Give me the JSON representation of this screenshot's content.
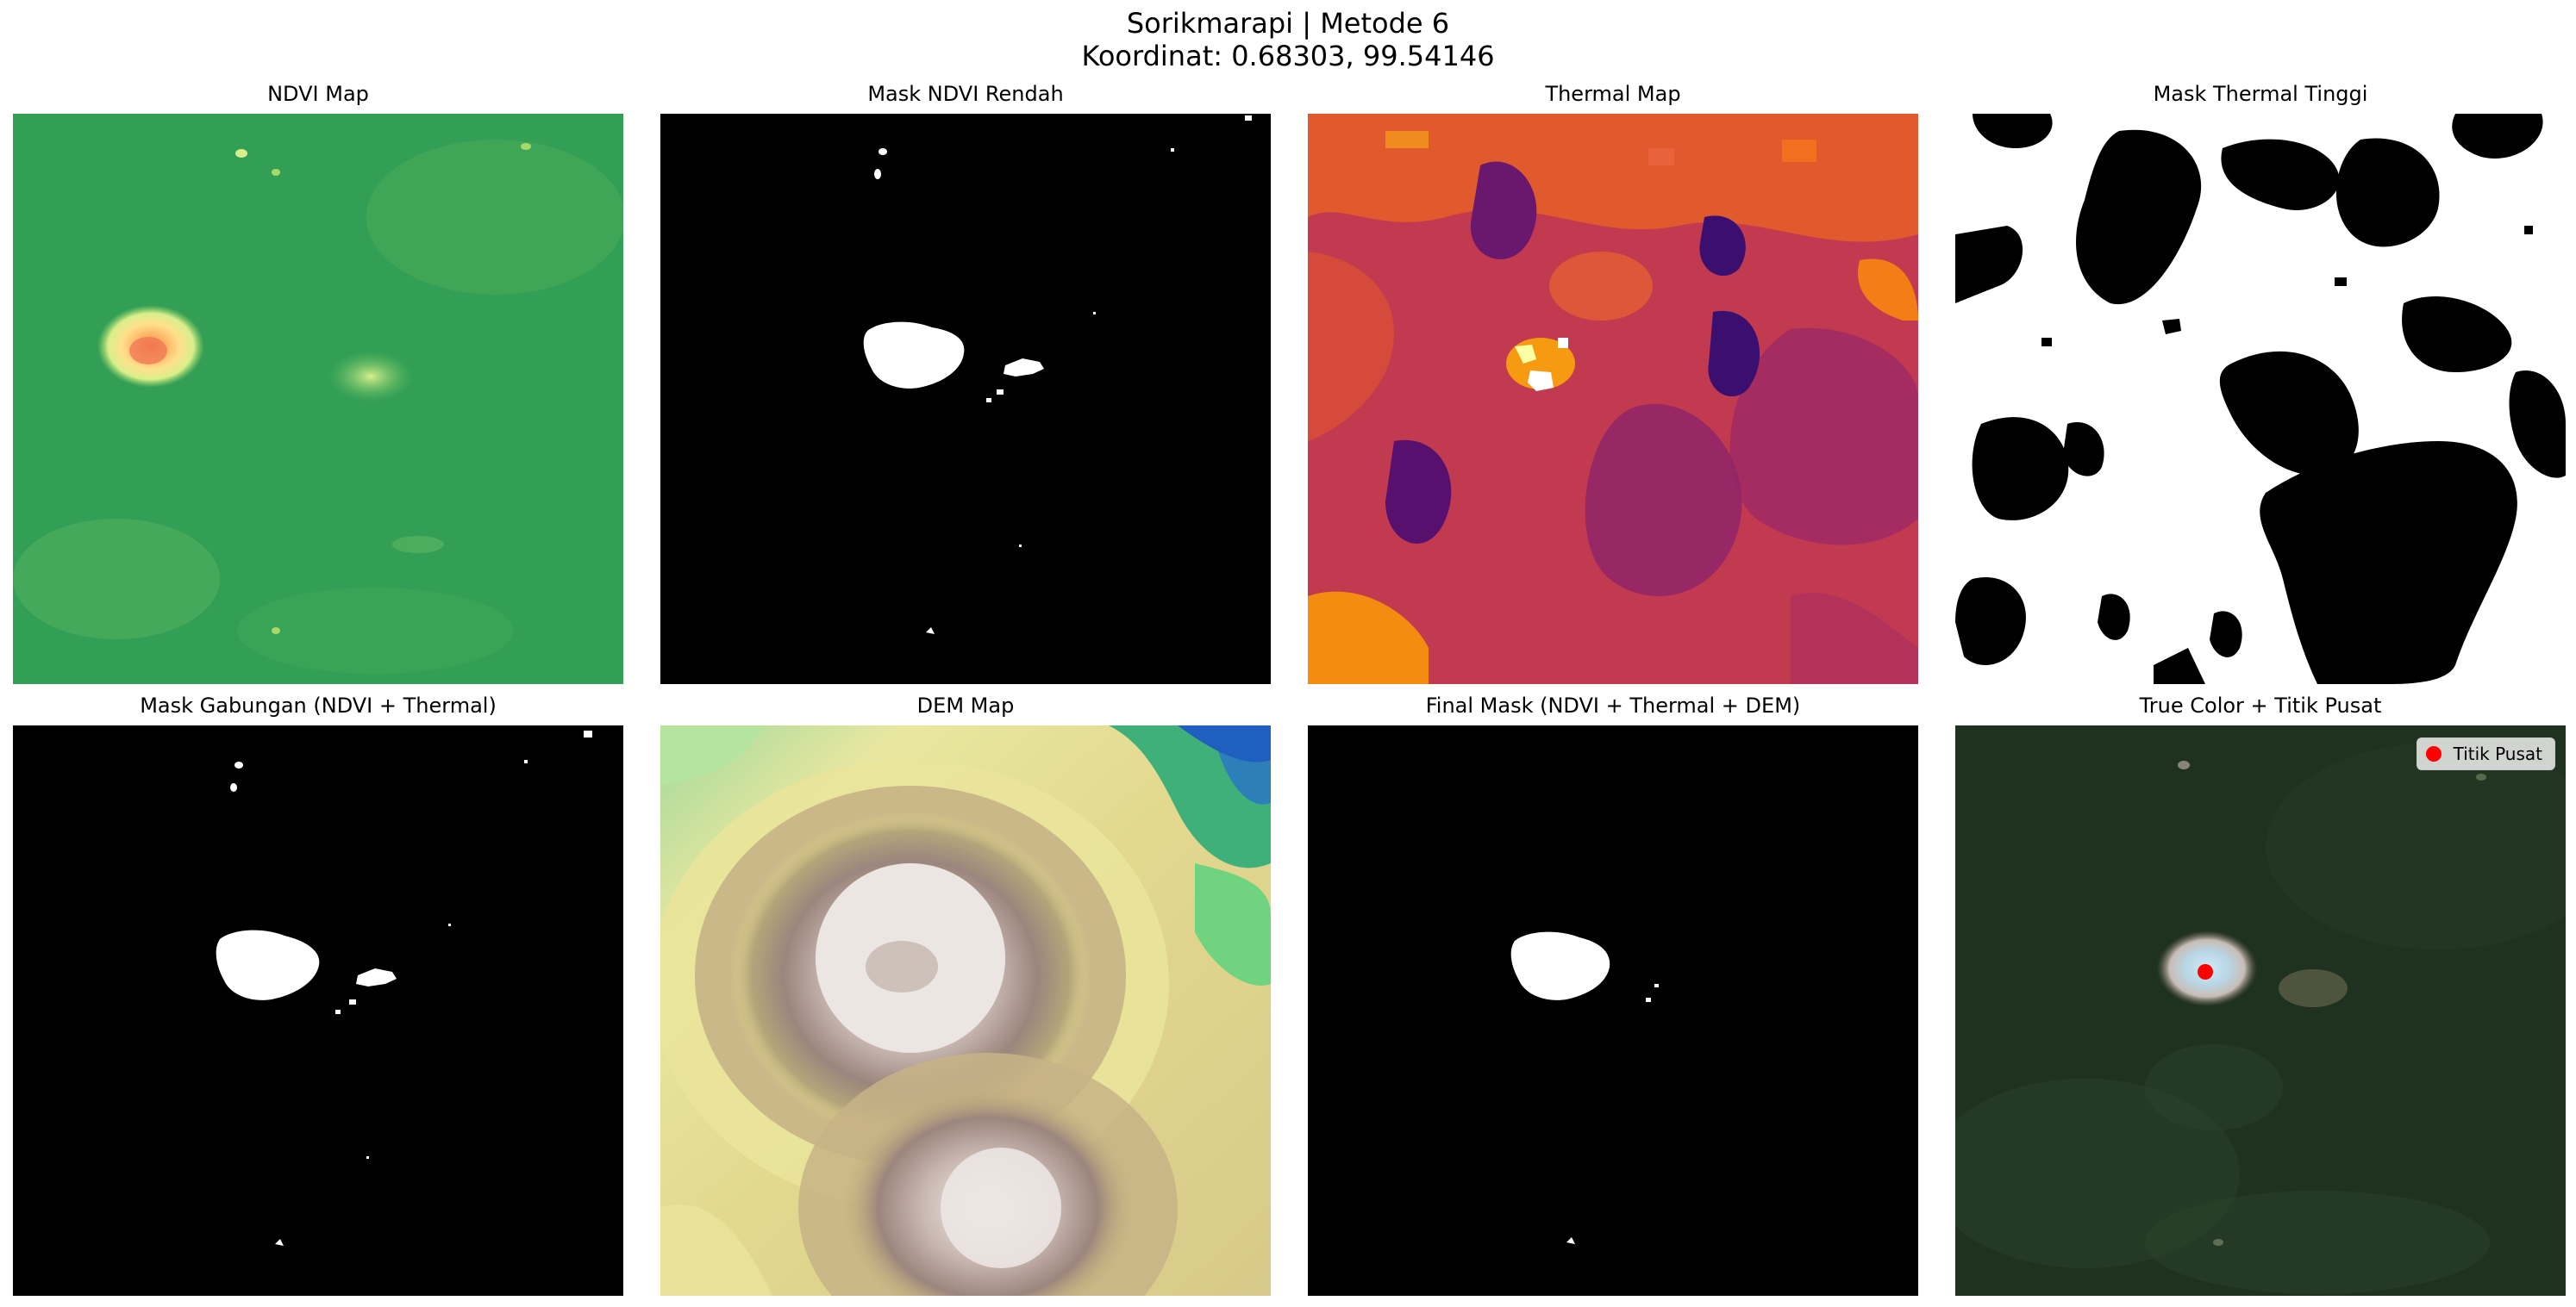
{
  "figure": {
    "title_line_1": "Sorikmarapi | Metode 6",
    "title_line_2": "Koordinat: 0.68303, 99.54146"
  },
  "panels": [
    {
      "title": "NDVI Map",
      "colormap": "RdYlGn"
    },
    {
      "title": "Mask NDVI Rendah",
      "colormap": "gray"
    },
    {
      "title": "Thermal Map",
      "colormap": "inferno"
    },
    {
      "title": "Mask Thermal Tinggi",
      "colormap": "gray"
    },
    {
      "title": "Mask Gabungan (NDVI + Thermal)",
      "colormap": "gray"
    },
    {
      "title": "DEM Map",
      "colormap": "terrain"
    },
    {
      "title": "Final Mask (NDVI + Thermal + DEM)",
      "colormap": "gray"
    },
    {
      "title": "True Color + Titik Pusat",
      "colormap": "rgb"
    }
  ],
  "legend": {
    "label": "Titik Pusat",
    "marker_color": "#ff0000"
  }
}
